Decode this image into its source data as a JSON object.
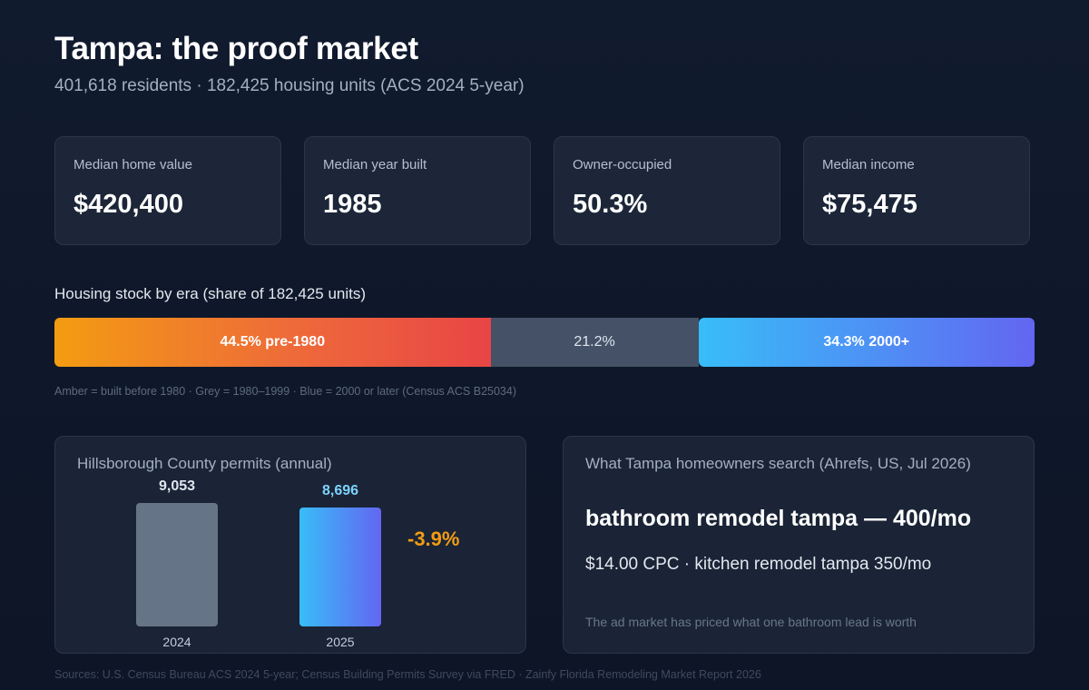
{
  "header": {
    "title": "Tampa: the proof market",
    "subtitle": "401,618 residents · 182,425 housing units (ACS 2024 5-year)"
  },
  "stats": [
    {
      "label": "Median home value",
      "value": "$420,400"
    },
    {
      "label": "Median year built",
      "value": "1985"
    },
    {
      "label": "Owner-occupied",
      "value": "50.3%"
    },
    {
      "label": "Median income",
      "value": "$75,475"
    }
  ],
  "era": {
    "title": "Housing stock by era (share of 182,425 units)",
    "segments": [
      {
        "share": 44.5,
        "label": "44.5% pre-1980",
        "color": "#f39c12"
      },
      {
        "share": 21.2,
        "label": "21.2%",
        "color": "#445166"
      },
      {
        "share": 34.3,
        "label": "34.3% 2000+",
        "color": "#4f8ef5"
      }
    ],
    "note": "Amber = built before 1980 · Grey = 1980–1999 · Blue = 2000 or later (Census ACS B25034)"
  },
  "chart_data": {
    "type": "bar",
    "title": "Hillsborough County permits (annual)",
    "categories": [
      "2024",
      "2025"
    ],
    "values": [
      9053,
      8696
    ],
    "value_labels": [
      "9,053",
      "8,696"
    ],
    "change_label": "-3.9%",
    "colors": [
      "#667488",
      "#4f8ef5"
    ]
  },
  "search": {
    "title": "What Tampa homeowners search (Ahrefs, US, Jul 2026)",
    "headline": "bathroom remodel tampa — 400/mo",
    "detail": "$14.00 CPC · kitchen remodel tampa 350/mo",
    "note": "The ad market has priced what one bathroom lead is worth"
  },
  "footer": {
    "sources": "Sources: U.S. Census Bureau ACS 2024 5-year; Census Building Permits Survey via FRED · Zainfy Florida Remodeling Market Report 2026"
  }
}
